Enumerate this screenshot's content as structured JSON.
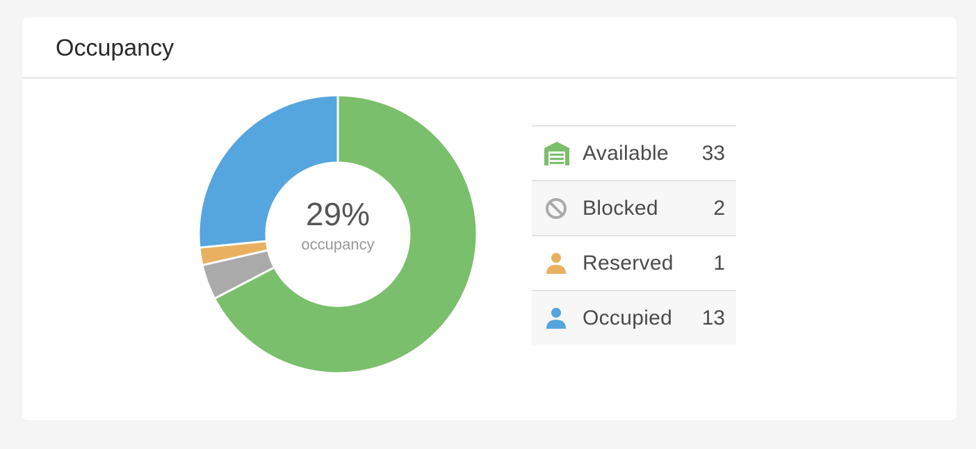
{
  "card": {
    "title": "Occupancy"
  },
  "colors": {
    "available": "#7abf6b",
    "blocked": "#aaaaaa",
    "reserved": "#e8b060",
    "occupied": "#55a5de"
  },
  "chart_data": {
    "type": "pie",
    "variant": "donut",
    "center_value": "29%",
    "center_label": "occupancy",
    "slices": [
      {
        "name": "Available",
        "value": 33,
        "color": "#7abf6b",
        "icon": "garage-icon"
      },
      {
        "name": "Blocked",
        "value": 2,
        "color": "#aaaaaa",
        "icon": "blocked-icon"
      },
      {
        "name": "Reserved",
        "value": 1,
        "color": "#e8b060",
        "icon": "person-icon"
      },
      {
        "name": "Occupied",
        "value": 13,
        "color": "#55a5de",
        "icon": "person-icon"
      }
    ],
    "legend_position": "right"
  }
}
